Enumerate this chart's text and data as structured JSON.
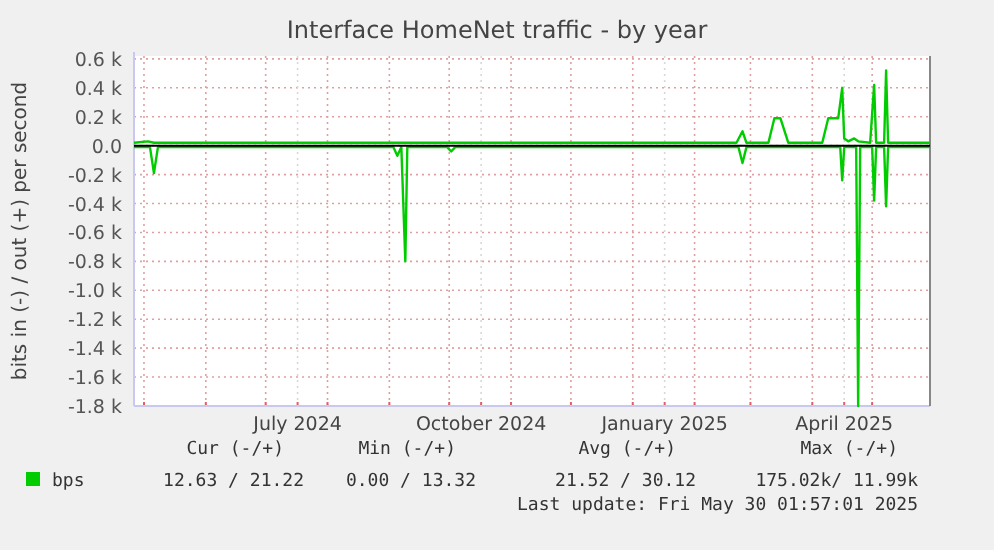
{
  "chart_data": {
    "type": "line",
    "title": "Interface HomeNet traffic - by year",
    "ylabel": "bits in (-) / out (+) per second",
    "xlim": [
      "2024-04-26",
      "2025-05-30"
    ],
    "xticks": [
      {
        "value": "2024-05-01",
        "label": null
      },
      {
        "value": "2024-06-01",
        "label": null
      },
      {
        "value": "2024-07-01",
        "label": null
      },
      {
        "value": "2024-07-17",
        "label": "July 2024"
      },
      {
        "value": "2024-08-01",
        "label": null
      },
      {
        "value": "2024-09-01",
        "label": null
      },
      {
        "value": "2024-10-01",
        "label": null
      },
      {
        "value": "2024-10-17",
        "label": "October 2024"
      },
      {
        "value": "2024-11-01",
        "label": null
      },
      {
        "value": "2024-12-01",
        "label": null
      },
      {
        "value": "2025-01-01",
        "label": null
      },
      {
        "value": "2025-01-17",
        "label": "January 2025"
      },
      {
        "value": "2025-02-01",
        "label": null
      },
      {
        "value": "2025-03-01",
        "label": null
      },
      {
        "value": "2025-04-01",
        "label": null
      },
      {
        "value": "2025-04-17",
        "label": "April 2025"
      },
      {
        "value": "2025-05-01",
        "label": null
      }
    ],
    "ylim": [
      -1.8,
      0.62
    ],
    "yticks": [
      {
        "value": 0.6,
        "label": "0.6 k"
      },
      {
        "value": 0.4,
        "label": "0.4 k"
      },
      {
        "value": 0.2,
        "label": "0.2 k"
      },
      {
        "value": 0,
        "label": "0.0"
      },
      {
        "value": -0.2,
        "label": "-0.2 k"
      },
      {
        "value": -0.4,
        "label": "-0.4 k"
      },
      {
        "value": -0.6,
        "label": "-0.6 k"
      },
      {
        "value": -0.8,
        "label": "-0.8 k"
      },
      {
        "value": -1.0,
        "label": "-1.0 k"
      },
      {
        "value": -1.2,
        "label": "-1.2 k"
      },
      {
        "value": -1.4,
        "label": "-1.4 k"
      },
      {
        "value": -1.6,
        "label": "-1.6 k"
      },
      {
        "value": -1.8,
        "label": "-1.8 k"
      }
    ],
    "grid": true,
    "legend": "bottom",
    "line_style": "solid",
    "series": [
      {
        "name": "bps",
        "color": "#00cc00",
        "x": [
          "2024-04-26",
          "2024-05-03",
          "2024-05-06",
          "2025-02-22",
          "2025-02-25",
          "2025-02-27",
          "2025-03-10",
          "2025-03-13",
          "2025-03-16",
          "2025-03-20",
          "2025-04-06",
          "2025-04-09",
          "2025-04-14",
          "2025-04-16",
          "2025-04-17",
          "2025-04-19",
          "2025-04-22",
          "2025-04-24",
          "2025-04-30",
          "2025-05-02",
          "2025-05-03",
          "2025-05-07",
          "2025-05-08",
          "2025-05-09",
          "2025-05-30"
        ],
        "values": [
          0.02,
          0.03,
          0.02,
          0.02,
          0.1,
          0.02,
          0.02,
          0.19,
          0.19,
          0.02,
          0.02,
          0.19,
          0.19,
          0.4,
          0.05,
          0.03,
          0.05,
          0.03,
          0.02,
          0.42,
          0.02,
          0.02,
          0.52,
          0.02,
          0.02
        ]
      },
      {
        "color": "#00cc00",
        "x": [
          "2024-04-26",
          "2024-05-04",
          "2024-05-06",
          "2024-05-08",
          "2024-09-03",
          "2024-09-05",
          "2024-09-07",
          "2024-09-09",
          "2024-09-10",
          "2024-09-30",
          "2024-10-02",
          "2024-10-04",
          "2025-02-23",
          "2025-02-25",
          "2025-02-27",
          "2025-04-15",
          "2025-04-16",
          "2025-04-17",
          "2025-04-23",
          "2025-04-24",
          "2025-04-25",
          "2025-05-01",
          "2025-05-02",
          "2025-05-03",
          "2025-05-07",
          "2025-05-08",
          "2025-05-09",
          "2025-05-30"
        ],
        "values": [
          -0.01,
          -0.01,
          -0.19,
          -0.01,
          -0.01,
          -0.07,
          -0.01,
          -0.8,
          -0.01,
          -0.01,
          -0.04,
          -0.01,
          -0.01,
          -0.12,
          -0.01,
          -0.01,
          -0.24,
          -0.01,
          -0.01,
          -1.8,
          -0.01,
          -0.01,
          -0.38,
          -0.01,
          -0.01,
          -0.42,
          -0.01,
          -0.01
        ]
      }
    ],
    "annotations": [
      "Cur (-/+)",
      "Min (-/+)",
      "Avg (-/+)",
      "Max (-/+)",
      "12.63 / 21.22",
      "0.00 / 13.32",
      "21.52 / 30.12",
      "175.02k/ 11.99k",
      "Last update: Fri May 30 01:57:01 2025"
    ]
  }
}
